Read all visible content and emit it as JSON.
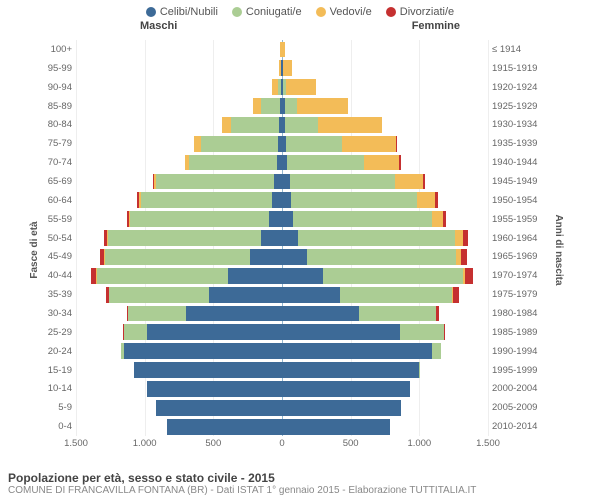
{
  "legend": [
    {
      "label": "Celibi/Nubili",
      "color": "#3d6a97"
    },
    {
      "label": "Coniugati/e",
      "color": "#abcd94"
    },
    {
      "label": "Vedovi/e",
      "color": "#f3bc58"
    },
    {
      "label": "Divorziati/e",
      "color": "#c53030"
    }
  ],
  "headers": {
    "male": "Maschi",
    "female": "Femmine"
  },
  "axis_labels": {
    "left": "Fasce di età",
    "right": "Anni di nascita"
  },
  "x_ticks": [
    "1.500",
    "1.000",
    "500",
    "0",
    "500",
    "1.000",
    "1.500"
  ],
  "max_value": 1500,
  "title": "Popolazione per età, sesso e stato civile - 2015",
  "subtitle": "COMUNE DI FRANCAVILLA FONTANA (BR) - Dati ISTAT 1° gennaio 2015 - Elaborazione TUTTITALIA.IT",
  "typography": {
    "title_fontsize": 12,
    "label_fontsize": 10,
    "tick_fontsize": 9.5
  },
  "background_color": "#ffffff",
  "grid_color": "#eeeeee",
  "rows": [
    {
      "age": "100+",
      "birth": "≤ 1914",
      "m": [
        0,
        0,
        15,
        0
      ],
      "f": [
        0,
        0,
        25,
        0
      ]
    },
    {
      "age": "95-99",
      "birth": "1915-1919",
      "m": [
        5,
        0,
        20,
        0
      ],
      "f": [
        5,
        5,
        60,
        0
      ]
    },
    {
      "age": "90-94",
      "birth": "1920-1924",
      "m": [
        10,
        20,
        40,
        0
      ],
      "f": [
        10,
        20,
        220,
        0
      ]
    },
    {
      "age": "85-89",
      "birth": "1925-1929",
      "m": [
        15,
        140,
        60,
        0
      ],
      "f": [
        20,
        90,
        370,
        0
      ]
    },
    {
      "age": "80-84",
      "birth": "1930-1934",
      "m": [
        25,
        350,
        60,
        0
      ],
      "f": [
        25,
        240,
        460,
        0
      ]
    },
    {
      "age": "75-79",
      "birth": "1935-1939",
      "m": [
        30,
        560,
        50,
        0
      ],
      "f": [
        30,
        410,
        390,
        5
      ]
    },
    {
      "age": "70-74",
      "birth": "1940-1944",
      "m": [
        35,
        640,
        35,
        0
      ],
      "f": [
        35,
        560,
        260,
        10
      ]
    },
    {
      "age": "65-69",
      "birth": "1945-1949",
      "m": [
        55,
        860,
        20,
        5
      ],
      "f": [
        55,
        770,
        200,
        15
      ]
    },
    {
      "age": "60-64",
      "birth": "1950-1954",
      "m": [
        70,
        960,
        15,
        10
      ],
      "f": [
        65,
        920,
        130,
        20
      ]
    },
    {
      "age": "55-59",
      "birth": "1955-1959",
      "m": [
        95,
        1010,
        10,
        15
      ],
      "f": [
        80,
        1010,
        80,
        25
      ]
    },
    {
      "age": "50-54",
      "birth": "1960-1964",
      "m": [
        150,
        1120,
        5,
        25
      ],
      "f": [
        120,
        1140,
        55,
        40
      ]
    },
    {
      "age": "45-49",
      "birth": "1965-1969",
      "m": [
        230,
        1060,
        3,
        30
      ],
      "f": [
        180,
        1090,
        30,
        45
      ]
    },
    {
      "age": "40-44",
      "birth": "1970-1974",
      "m": [
        390,
        960,
        2,
        40
      ],
      "f": [
        300,
        1020,
        15,
        55
      ]
    },
    {
      "age": "35-39",
      "birth": "1975-1979",
      "m": [
        530,
        730,
        0,
        25
      ],
      "f": [
        420,
        820,
        8,
        40
      ]
    },
    {
      "age": "30-34",
      "birth": "1980-1984",
      "m": [
        700,
        420,
        0,
        12
      ],
      "f": [
        560,
        560,
        3,
        18
      ]
    },
    {
      "age": "25-29",
      "birth": "1985-1989",
      "m": [
        980,
        170,
        0,
        5
      ],
      "f": [
        860,
        320,
        0,
        8
      ]
    },
    {
      "age": "20-24",
      "birth": "1990-1994",
      "m": [
        1150,
        25,
        0,
        0
      ],
      "f": [
        1090,
        70,
        0,
        0
      ]
    },
    {
      "age": "15-19",
      "birth": "1995-1999",
      "m": [
        1080,
        0,
        0,
        0
      ],
      "f": [
        1000,
        5,
        0,
        0
      ]
    },
    {
      "age": "10-14",
      "birth": "2000-2004",
      "m": [
        980,
        0,
        0,
        0
      ],
      "f": [
        930,
        0,
        0,
        0
      ]
    },
    {
      "age": "5-9",
      "birth": "2005-2009",
      "m": [
        920,
        0,
        0,
        0
      ],
      "f": [
        870,
        0,
        0,
        0
      ]
    },
    {
      "age": "0-4",
      "birth": "2010-2014",
      "m": [
        840,
        0,
        0,
        0
      ],
      "f": [
        790,
        0,
        0,
        0
      ]
    }
  ]
}
